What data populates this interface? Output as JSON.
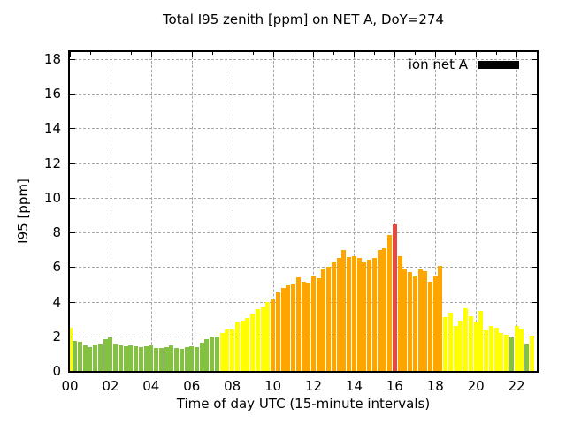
{
  "chart_data": {
    "type": "bar",
    "title": "Total I95 zenith [ppm] on NET A, DoY=274",
    "xlabel": "Time of day UTC (15-minute intervals)",
    "ylabel": "I95 [ppm]",
    "legend": [
      {
        "name": "ion net A",
        "swatch_color": "#000000"
      }
    ],
    "legend_position": "top-right-inside",
    "grid": true,
    "bar_interval_minutes": 15,
    "x_axis": {
      "unit": "hours",
      "range": [
        0,
        23
      ],
      "major_ticks": [
        0,
        2,
        4,
        6,
        8,
        10,
        12,
        14,
        16,
        18,
        20,
        22
      ],
      "tick_labels": [
        "00",
        "02",
        "04",
        "06",
        "08",
        "10",
        "12",
        "14",
        "16",
        "18",
        "20",
        "22"
      ],
      "minor_tick_every_hours": 1
    },
    "y_axis": {
      "range": [
        0,
        18.4
      ],
      "ticks": [
        0,
        2,
        4,
        6,
        8,
        10,
        12,
        14,
        16,
        18
      ],
      "tick_labels": [
        "0",
        "2",
        "4",
        "6",
        "8",
        "10",
        "12",
        "14",
        "16",
        "18"
      ]
    },
    "palette": {
      "green": "#84C042",
      "yellow": "#FFFF00",
      "orange": "#FFA500",
      "red": "#E8463F"
    },
    "color_rules": {
      "green_max": 2,
      "yellow_max": 4,
      "orange_max": 8,
      "red_above": 8
    },
    "series": [
      {
        "time": "00:00",
        "value": 2.5,
        "color": "yellow"
      },
      {
        "time": "00:15",
        "value": 1.75,
        "color": "green"
      },
      {
        "time": "00:30",
        "value": 1.7,
        "color": "green"
      },
      {
        "time": "00:45",
        "value": 1.5,
        "color": "green"
      },
      {
        "time": "01:00",
        "value": 1.4,
        "color": "green"
      },
      {
        "time": "01:15",
        "value": 1.55,
        "color": "green"
      },
      {
        "time": "01:30",
        "value": 1.6,
        "color": "green"
      },
      {
        "time": "01:45",
        "value": 1.85,
        "color": "green"
      },
      {
        "time": "02:00",
        "value": 1.95,
        "color": "green"
      },
      {
        "time": "02:15",
        "value": 1.6,
        "color": "green"
      },
      {
        "time": "02:30",
        "value": 1.5,
        "color": "green"
      },
      {
        "time": "02:45",
        "value": 1.45,
        "color": "green"
      },
      {
        "time": "03:00",
        "value": 1.5,
        "color": "green"
      },
      {
        "time": "03:15",
        "value": 1.45,
        "color": "green"
      },
      {
        "time": "03:30",
        "value": 1.4,
        "color": "green"
      },
      {
        "time": "03:45",
        "value": 1.45,
        "color": "green"
      },
      {
        "time": "04:00",
        "value": 1.5,
        "color": "green"
      },
      {
        "time": "04:15",
        "value": 1.35,
        "color": "green"
      },
      {
        "time": "04:30",
        "value": 1.35,
        "color": "green"
      },
      {
        "time": "04:45",
        "value": 1.4,
        "color": "green"
      },
      {
        "time": "05:00",
        "value": 1.5,
        "color": "green"
      },
      {
        "time": "05:15",
        "value": 1.35,
        "color": "green"
      },
      {
        "time": "05:30",
        "value": 1.3,
        "color": "green"
      },
      {
        "time": "05:45",
        "value": 1.4,
        "color": "green"
      },
      {
        "time": "06:00",
        "value": 1.45,
        "color": "green"
      },
      {
        "time": "06:15",
        "value": 1.4,
        "color": "green"
      },
      {
        "time": "06:30",
        "value": 1.65,
        "color": "green"
      },
      {
        "time": "06:45",
        "value": 1.85,
        "color": "green"
      },
      {
        "time": "07:00",
        "value": 2.0,
        "color": "green"
      },
      {
        "time": "07:15",
        "value": 2.0,
        "color": "green"
      },
      {
        "time": "07:30",
        "value": 2.2,
        "color": "yellow"
      },
      {
        "time": "07:45",
        "value": 2.4,
        "color": "yellow"
      },
      {
        "time": "08:00",
        "value": 2.4,
        "color": "yellow"
      },
      {
        "time": "08:15",
        "value": 2.85,
        "color": "yellow"
      },
      {
        "time": "08:30",
        "value": 2.9,
        "color": "yellow"
      },
      {
        "time": "08:45",
        "value": 3.05,
        "color": "yellow"
      },
      {
        "time": "09:00",
        "value": 3.3,
        "color": "yellow"
      },
      {
        "time": "09:15",
        "value": 3.55,
        "color": "yellow"
      },
      {
        "time": "09:30",
        "value": 3.7,
        "color": "yellow"
      },
      {
        "time": "09:45",
        "value": 4.0,
        "color": "yellow"
      },
      {
        "time": "10:00",
        "value": 4.15,
        "color": "orange"
      },
      {
        "time": "10:15",
        "value": 4.55,
        "color": "orange"
      },
      {
        "time": "10:30",
        "value": 4.8,
        "color": "orange"
      },
      {
        "time": "10:45",
        "value": 4.95,
        "color": "orange"
      },
      {
        "time": "11:00",
        "value": 5.0,
        "color": "orange"
      },
      {
        "time": "11:15",
        "value": 5.4,
        "color": "orange"
      },
      {
        "time": "11:30",
        "value": 5.15,
        "color": "orange"
      },
      {
        "time": "11:45",
        "value": 5.1,
        "color": "orange"
      },
      {
        "time": "12:00",
        "value": 5.45,
        "color": "orange"
      },
      {
        "time": "12:15",
        "value": 5.35,
        "color": "orange"
      },
      {
        "time": "12:30",
        "value": 5.85,
        "color": "orange"
      },
      {
        "time": "12:45",
        "value": 6.0,
        "color": "orange"
      },
      {
        "time": "13:00",
        "value": 6.25,
        "color": "orange"
      },
      {
        "time": "13:15",
        "value": 6.5,
        "color": "orange"
      },
      {
        "time": "13:30",
        "value": 7.0,
        "color": "orange"
      },
      {
        "time": "13:45",
        "value": 6.6,
        "color": "orange"
      },
      {
        "time": "14:00",
        "value": 6.65,
        "color": "orange"
      },
      {
        "time": "14:15",
        "value": 6.5,
        "color": "orange"
      },
      {
        "time": "14:30",
        "value": 6.25,
        "color": "orange"
      },
      {
        "time": "14:45",
        "value": 6.4,
        "color": "orange"
      },
      {
        "time": "15:00",
        "value": 6.5,
        "color": "orange"
      },
      {
        "time": "15:15",
        "value": 7.0,
        "color": "orange"
      },
      {
        "time": "15:30",
        "value": 7.1,
        "color": "orange"
      },
      {
        "time": "15:45",
        "value": 7.85,
        "color": "orange"
      },
      {
        "time": "16:00",
        "value": 8.45,
        "color": "red"
      },
      {
        "time": "16:15",
        "value": 6.65,
        "color": "orange"
      },
      {
        "time": "16:30",
        "value": 5.9,
        "color": "orange"
      },
      {
        "time": "16:45",
        "value": 5.7,
        "color": "orange"
      },
      {
        "time": "17:00",
        "value": 5.45,
        "color": "orange"
      },
      {
        "time": "17:15",
        "value": 5.85,
        "color": "orange"
      },
      {
        "time": "17:30",
        "value": 5.75,
        "color": "orange"
      },
      {
        "time": "17:45",
        "value": 5.15,
        "color": "orange"
      },
      {
        "time": "18:00",
        "value": 5.45,
        "color": "orange"
      },
      {
        "time": "18:15",
        "value": 6.05,
        "color": "orange"
      },
      {
        "time": "18:30",
        "value": 3.1,
        "color": "yellow"
      },
      {
        "time": "18:45",
        "value": 3.35,
        "color": "yellow"
      },
      {
        "time": "19:00",
        "value": 2.6,
        "color": "yellow"
      },
      {
        "time": "19:15",
        "value": 2.9,
        "color": "yellow"
      },
      {
        "time": "19:30",
        "value": 3.6,
        "color": "yellow"
      },
      {
        "time": "19:45",
        "value": 3.15,
        "color": "yellow"
      },
      {
        "time": "20:00",
        "value": 2.85,
        "color": "yellow"
      },
      {
        "time": "20:15",
        "value": 3.45,
        "color": "yellow"
      },
      {
        "time": "20:30",
        "value": 2.35,
        "color": "yellow"
      },
      {
        "time": "20:45",
        "value": 2.6,
        "color": "yellow"
      },
      {
        "time": "21:00",
        "value": 2.5,
        "color": "yellow"
      },
      {
        "time": "21:15",
        "value": 2.2,
        "color": "yellow"
      },
      {
        "time": "21:30",
        "value": 2.1,
        "color": "yellow"
      },
      {
        "time": "21:45",
        "value": 1.95,
        "color": "green"
      },
      {
        "time": "22:00",
        "value": 2.6,
        "color": "yellow"
      },
      {
        "time": "22:15",
        "value": 2.4,
        "color": "yellow"
      },
      {
        "time": "22:30",
        "value": 1.6,
        "color": "green"
      },
      {
        "time": "22:45",
        "value": 2.05,
        "color": "yellow"
      }
    ]
  }
}
